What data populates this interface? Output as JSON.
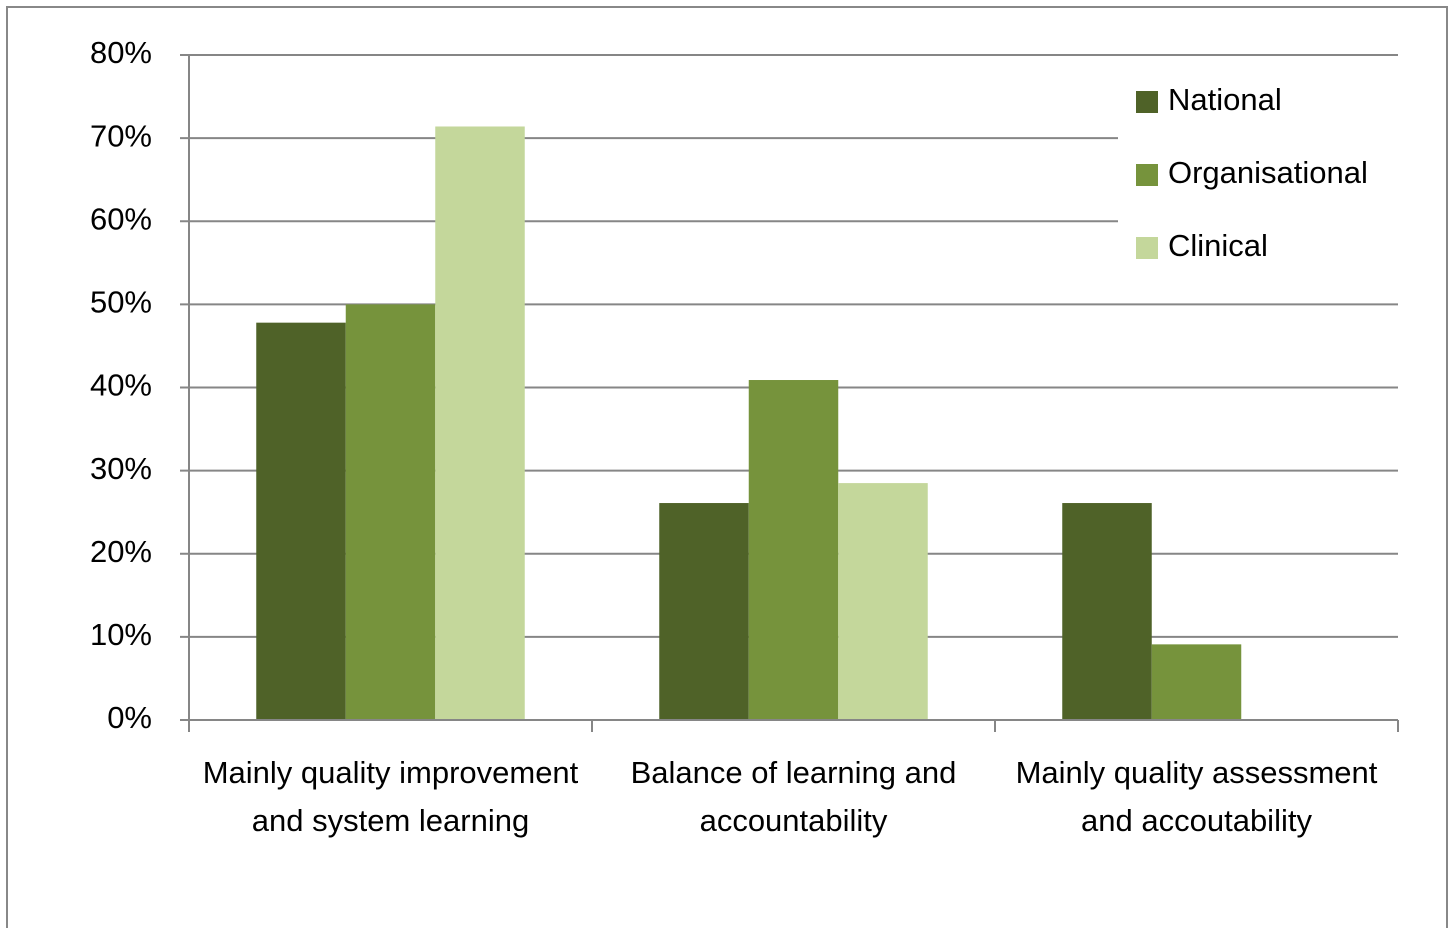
{
  "chart_data": {
    "type": "bar",
    "categories": [
      "Mainly quality improvement and system learning",
      "Balance of learning and accountability",
      "Mainly quality assessment and accoutability"
    ],
    "series": [
      {
        "name": "National",
        "color": "#4f6228",
        "values": [
          47.8,
          26.1,
          26.1
        ]
      },
      {
        "name": "Organisational",
        "color": "#76933c",
        "values": [
          50.0,
          40.9,
          9.1
        ]
      },
      {
        "name": "Clinical",
        "color": "#c4d79b",
        "values": [
          71.4,
          28.5,
          0
        ]
      }
    ],
    "ylim": [
      0,
      80
    ],
    "yticks": [
      {
        "value": 0,
        "label": "0%"
      },
      {
        "value": 10,
        "label": "10%"
      },
      {
        "value": 20,
        "label": "20%"
      },
      {
        "value": 30,
        "label": "30%"
      },
      {
        "value": 40,
        "label": "40%"
      },
      {
        "value": 50,
        "label": "50%"
      },
      {
        "value": 60,
        "label": "60%"
      },
      {
        "value": 70,
        "label": "70%"
      },
      {
        "value": 80,
        "label": "80%"
      }
    ],
    "grid": true,
    "legend": "top-right"
  }
}
